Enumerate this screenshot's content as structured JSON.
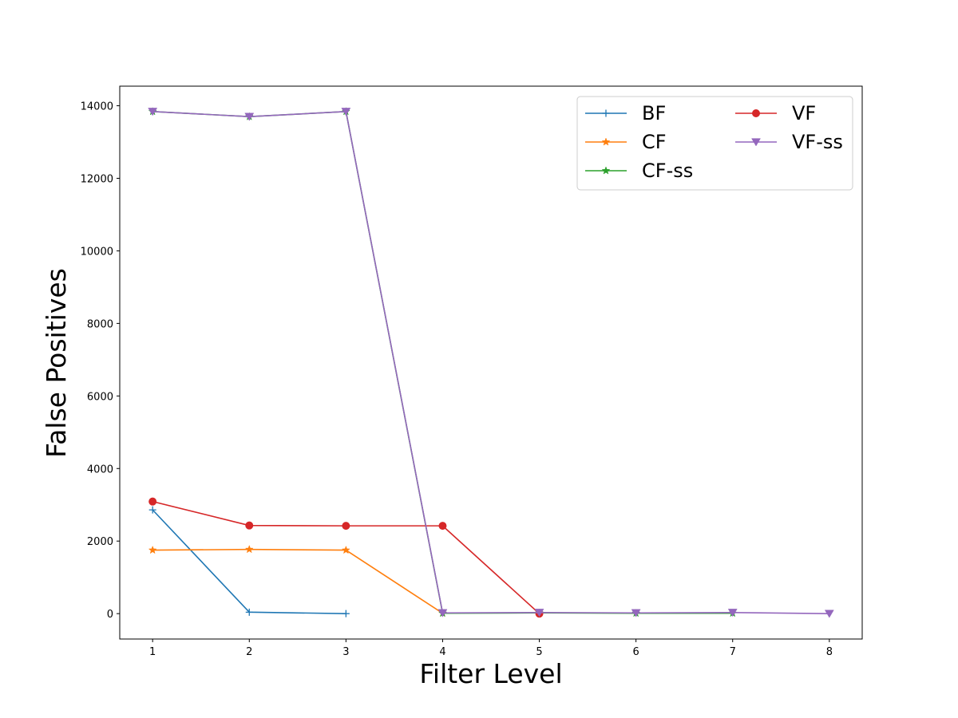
{
  "chart_data": {
    "type": "line",
    "title": "",
    "xlabel": "Filter Level",
    "ylabel": "False Positives",
    "xlim": [
      0.66,
      8.34
    ],
    "ylim": [
      -700,
      14540
    ],
    "xticks": [
      1,
      2,
      3,
      4,
      5,
      6,
      7,
      8
    ],
    "yticks": [
      0,
      2000,
      4000,
      6000,
      8000,
      10000,
      12000,
      14000
    ],
    "grid": false,
    "legend": {
      "position": "top-right",
      "columns": 2
    },
    "series": [
      {
        "name": "BF",
        "color": "#1f77b4",
        "marker": "plus",
        "x": [
          1,
          2,
          3
        ],
        "y": [
          2860,
          40,
          0
        ]
      },
      {
        "name": "CF",
        "color": "#ff7f0e",
        "marker": "star",
        "x": [
          1,
          2,
          3,
          4
        ],
        "y": [
          1750,
          1770,
          1750,
          10
        ]
      },
      {
        "name": "CF-ss",
        "color": "#2ca02c",
        "marker": "star",
        "x": [
          1,
          2,
          3,
          4,
          5,
          6,
          7
        ],
        "y": [
          13840,
          13700,
          13840,
          10,
          20,
          10,
          10
        ]
      },
      {
        "name": "VF",
        "color": "#d62728",
        "marker": "circle",
        "x": [
          1,
          2,
          3,
          4,
          5
        ],
        "y": [
          3090,
          2430,
          2420,
          2420,
          0
        ]
      },
      {
        "name": "VF-ss",
        "color": "#9467bd",
        "marker": "triangle-down",
        "x": [
          1,
          2,
          3,
          4,
          5,
          6,
          7,
          8
        ],
        "y": [
          13840,
          13700,
          13840,
          20,
          30,
          20,
          30,
          0
        ]
      }
    ]
  }
}
